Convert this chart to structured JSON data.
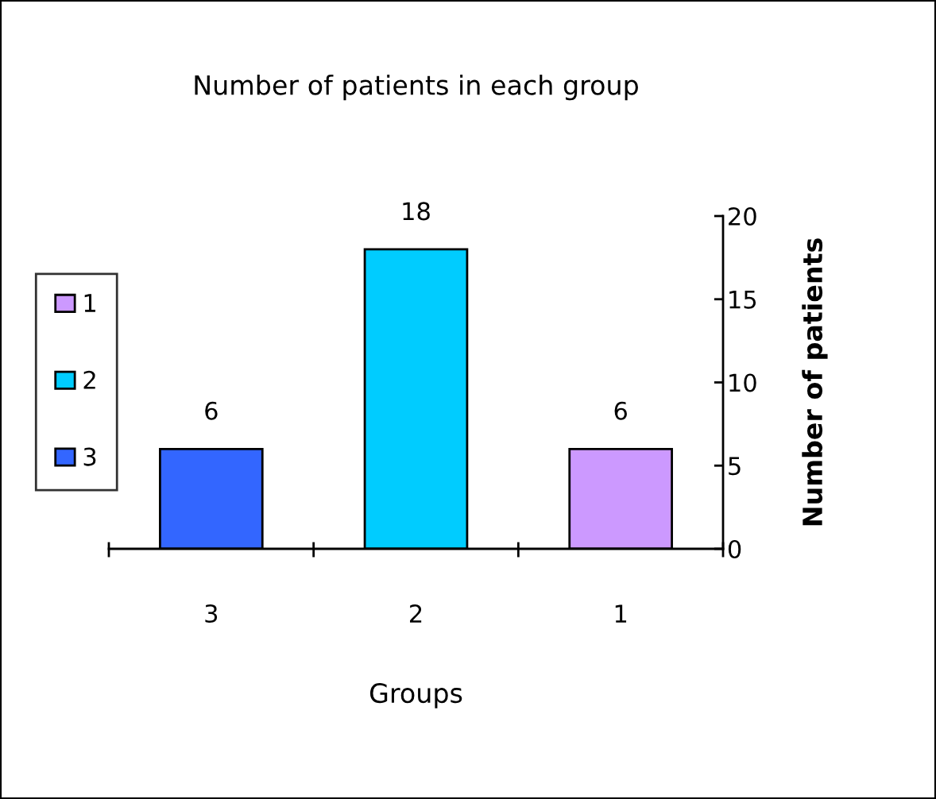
{
  "chart_data": {
    "type": "bar",
    "title": "Number of patients in each group",
    "xlabel": "Groups",
    "ylabel": "Number of patients",
    "categories": [
      "3",
      "2",
      "1"
    ],
    "series": [
      {
        "name": "3",
        "color": "#3366ff",
        "values": [
          6,
          null,
          null
        ]
      },
      {
        "name": "2",
        "color": "#00ccff",
        "values": [
          null,
          18,
          null
        ]
      },
      {
        "name": "1",
        "color": "#cc99ff",
        "values": [
          null,
          null,
          6
        ]
      }
    ],
    "ylim": [
      0,
      20
    ],
    "yticks": [
      0,
      5,
      10,
      15,
      20
    ],
    "data_labels": true,
    "grid": false,
    "legend": "left"
  }
}
